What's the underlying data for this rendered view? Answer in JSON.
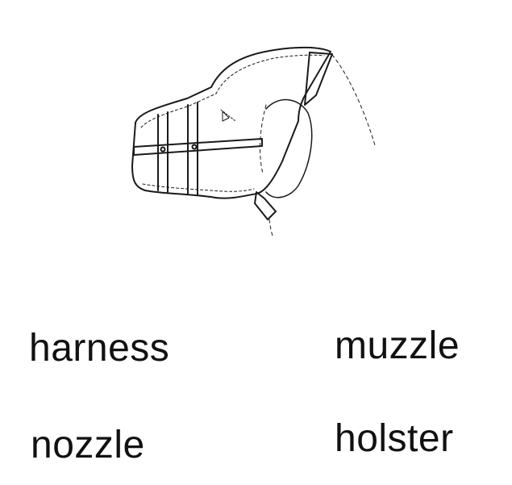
{
  "illustration": {
    "subject": "dog-muzzle-drawing",
    "stroke_color": "#1a1a1a"
  },
  "options": [
    {
      "label": "harness"
    },
    {
      "label": "muzzle"
    },
    {
      "label": "nozzle"
    },
    {
      "label": "holster"
    }
  ]
}
